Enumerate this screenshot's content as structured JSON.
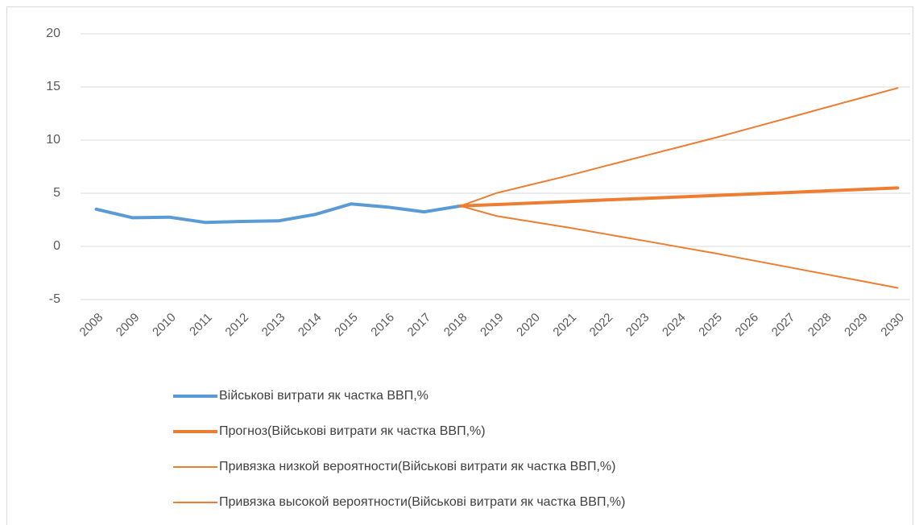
{
  "chart_data": {
    "type": "line",
    "categories": [
      "2008",
      "2009",
      "2010",
      "2011",
      "2012",
      "2013",
      "2014",
      "2015",
      "2016",
      "2017",
      "2018",
      "2019",
      "2020",
      "2021",
      "2022",
      "2023",
      "2024",
      "2025",
      "2026",
      "2027",
      "2028",
      "2029",
      "2030"
    ],
    "series": [
      {
        "name": "Військові витрати як частка ВВП,%",
        "color": "#5b9bd5",
        "width": 4,
        "values": [
          3.5,
          2.7,
          2.75,
          2.25,
          2.35,
          2.4,
          3.0,
          4.0,
          3.7,
          3.25,
          3.8,
          null,
          null,
          null,
          null,
          null,
          null,
          null,
          null,
          null,
          null,
          null,
          null
        ]
      },
      {
        "name": "Прогноз(Військові витрати як частка ВВП,%)",
        "color": "#ed7d31",
        "width": 4,
        "values": [
          null,
          null,
          null,
          null,
          null,
          null,
          null,
          null,
          null,
          null,
          3.8,
          3.94,
          4.08,
          4.22,
          4.37,
          4.51,
          4.65,
          4.79,
          4.93,
          5.07,
          5.22,
          5.36,
          5.5
        ]
      },
      {
        "name": "Привязка низкой вероятности(Військові витрати як частка ВВП,%)",
        "color": "#ed7d31",
        "width": 2,
        "values": [
          null,
          null,
          null,
          null,
          null,
          null,
          null,
          null,
          null,
          null,
          3.8,
          2.85,
          2.3,
          1.75,
          1.15,
          0.55,
          -0.05,
          -0.65,
          -1.3,
          -1.95,
          -2.6,
          -3.25,
          -3.9
        ]
      },
      {
        "name": "Привязка высокой вероятности(Військові витрати як частка ВВП,%)",
        "color": "#ed7d31",
        "width": 2,
        "values": [
          null,
          null,
          null,
          null,
          null,
          null,
          null,
          null,
          null,
          null,
          3.8,
          5.03,
          5.86,
          6.69,
          7.59,
          8.47,
          9.35,
          10.23,
          11.16,
          12.09,
          13.04,
          13.97,
          14.9
        ]
      }
    ],
    "ylim": [
      -5,
      20
    ],
    "yticks": [
      -5,
      0,
      5,
      10,
      15,
      20
    ],
    "grid": true
  }
}
